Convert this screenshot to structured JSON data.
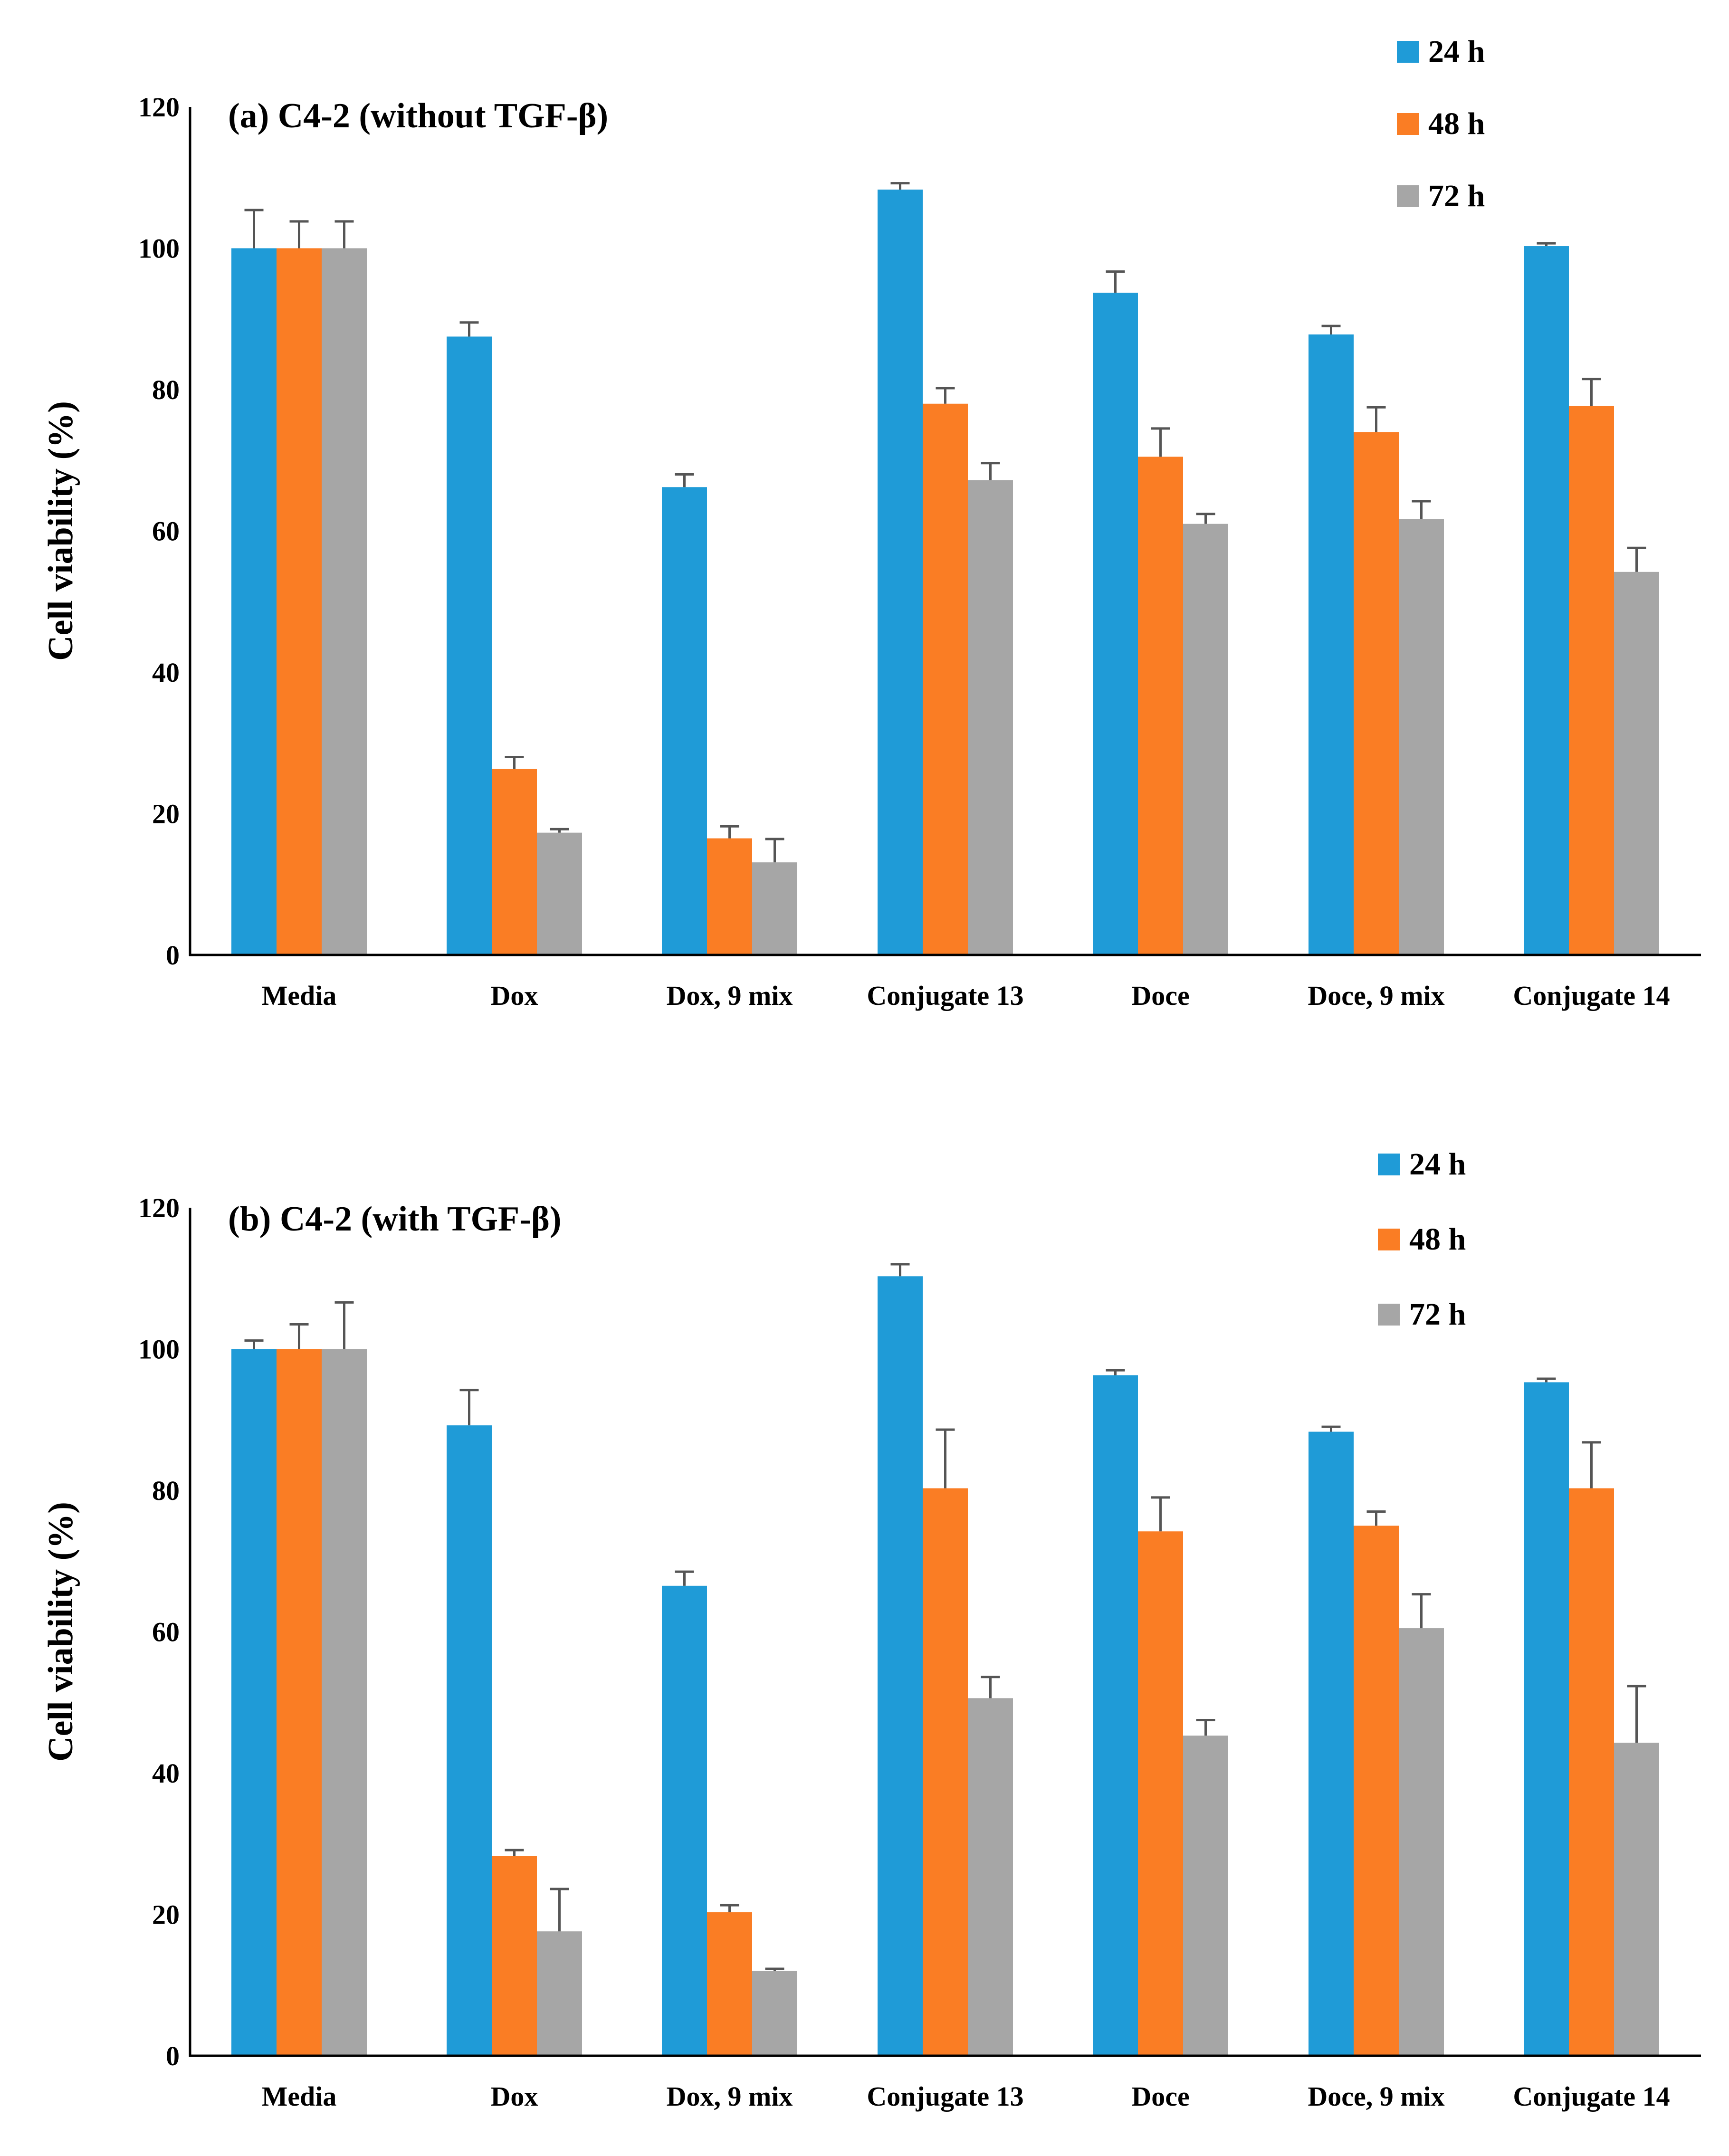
{
  "chart_data": [
    {
      "type": "bar",
      "title": "(a) C4-2 (without TGF-β)",
      "ylabel": "Cell viability  (%)",
      "xlabel": "",
      "ylim": [
        0,
        120
      ],
      "yticks": [
        0,
        20,
        40,
        60,
        80,
        100,
        120
      ],
      "categories": [
        "Media",
        "Dox",
        "Dox, 9 mix",
        "Conjugate 13",
        "Doce",
        "Doce, 9 mix",
        "Conjugate 14"
      ],
      "legend_position": "top-right",
      "series": [
        {
          "name": "24 h",
          "color": "#1f9bd7",
          "values": [
            100,
            87.5,
            66.2,
            108.3,
            93.7,
            87.8,
            100.3
          ],
          "errors": [
            5.4,
            2.0,
            1.8,
            0.9,
            3.0,
            1.2,
            0.4
          ]
        },
        {
          "name": "48 h",
          "color": "#fa7d24",
          "values": [
            100,
            26.3,
            16.5,
            78.0,
            70.5,
            74.0,
            77.7
          ],
          "errors": [
            3.8,
            1.7,
            1.7,
            2.2,
            4.0,
            3.5,
            3.8
          ]
        },
        {
          "name": "72 h",
          "color": "#a6a6a6",
          "values": [
            100,
            17.3,
            13.1,
            67.2,
            61.0,
            61.7,
            54.2
          ],
          "errors": [
            3.8,
            0.5,
            3.3,
            2.4,
            1.4,
            2.5,
            3.4
          ]
        }
      ]
    },
    {
      "type": "bar",
      "title": "(b) C4-2 (with TGF-β)",
      "ylabel": "Cell viability (%)",
      "xlabel": "",
      "ylim": [
        0,
        120
      ],
      "yticks": [
        0,
        20,
        40,
        60,
        80,
        100,
        120
      ],
      "categories": [
        "Media",
        "Dox",
        "Dox, 9 mix",
        "Conjugate 13",
        "Doce",
        "Doce, 9 mix",
        "Conjugate 14"
      ],
      "legend_position": "top-right",
      "series": [
        {
          "name": "24 h",
          "color": "#1f9bd7",
          "values": [
            100,
            89.2,
            66.5,
            110.3,
            96.3,
            88.3,
            95.3
          ],
          "errors": [
            1.2,
            5.0,
            2.0,
            1.7,
            0.7,
            0.7,
            0.5
          ]
        },
        {
          "name": "48 h",
          "color": "#fa7d24",
          "values": [
            100,
            28.3,
            20.3,
            80.3,
            74.2,
            75.0,
            80.3
          ],
          "errors": [
            3.5,
            0.8,
            1.0,
            8.3,
            4.8,
            2.0,
            6.5
          ]
        },
        {
          "name": "72 h",
          "color": "#a6a6a6",
          "values": [
            100,
            17.6,
            12.0,
            50.6,
            45.3,
            60.5,
            44.3
          ],
          "errors": [
            6.6,
            6.0,
            0.3,
            3.0,
            2.2,
            4.8,
            8.0
          ]
        }
      ]
    }
  ]
}
